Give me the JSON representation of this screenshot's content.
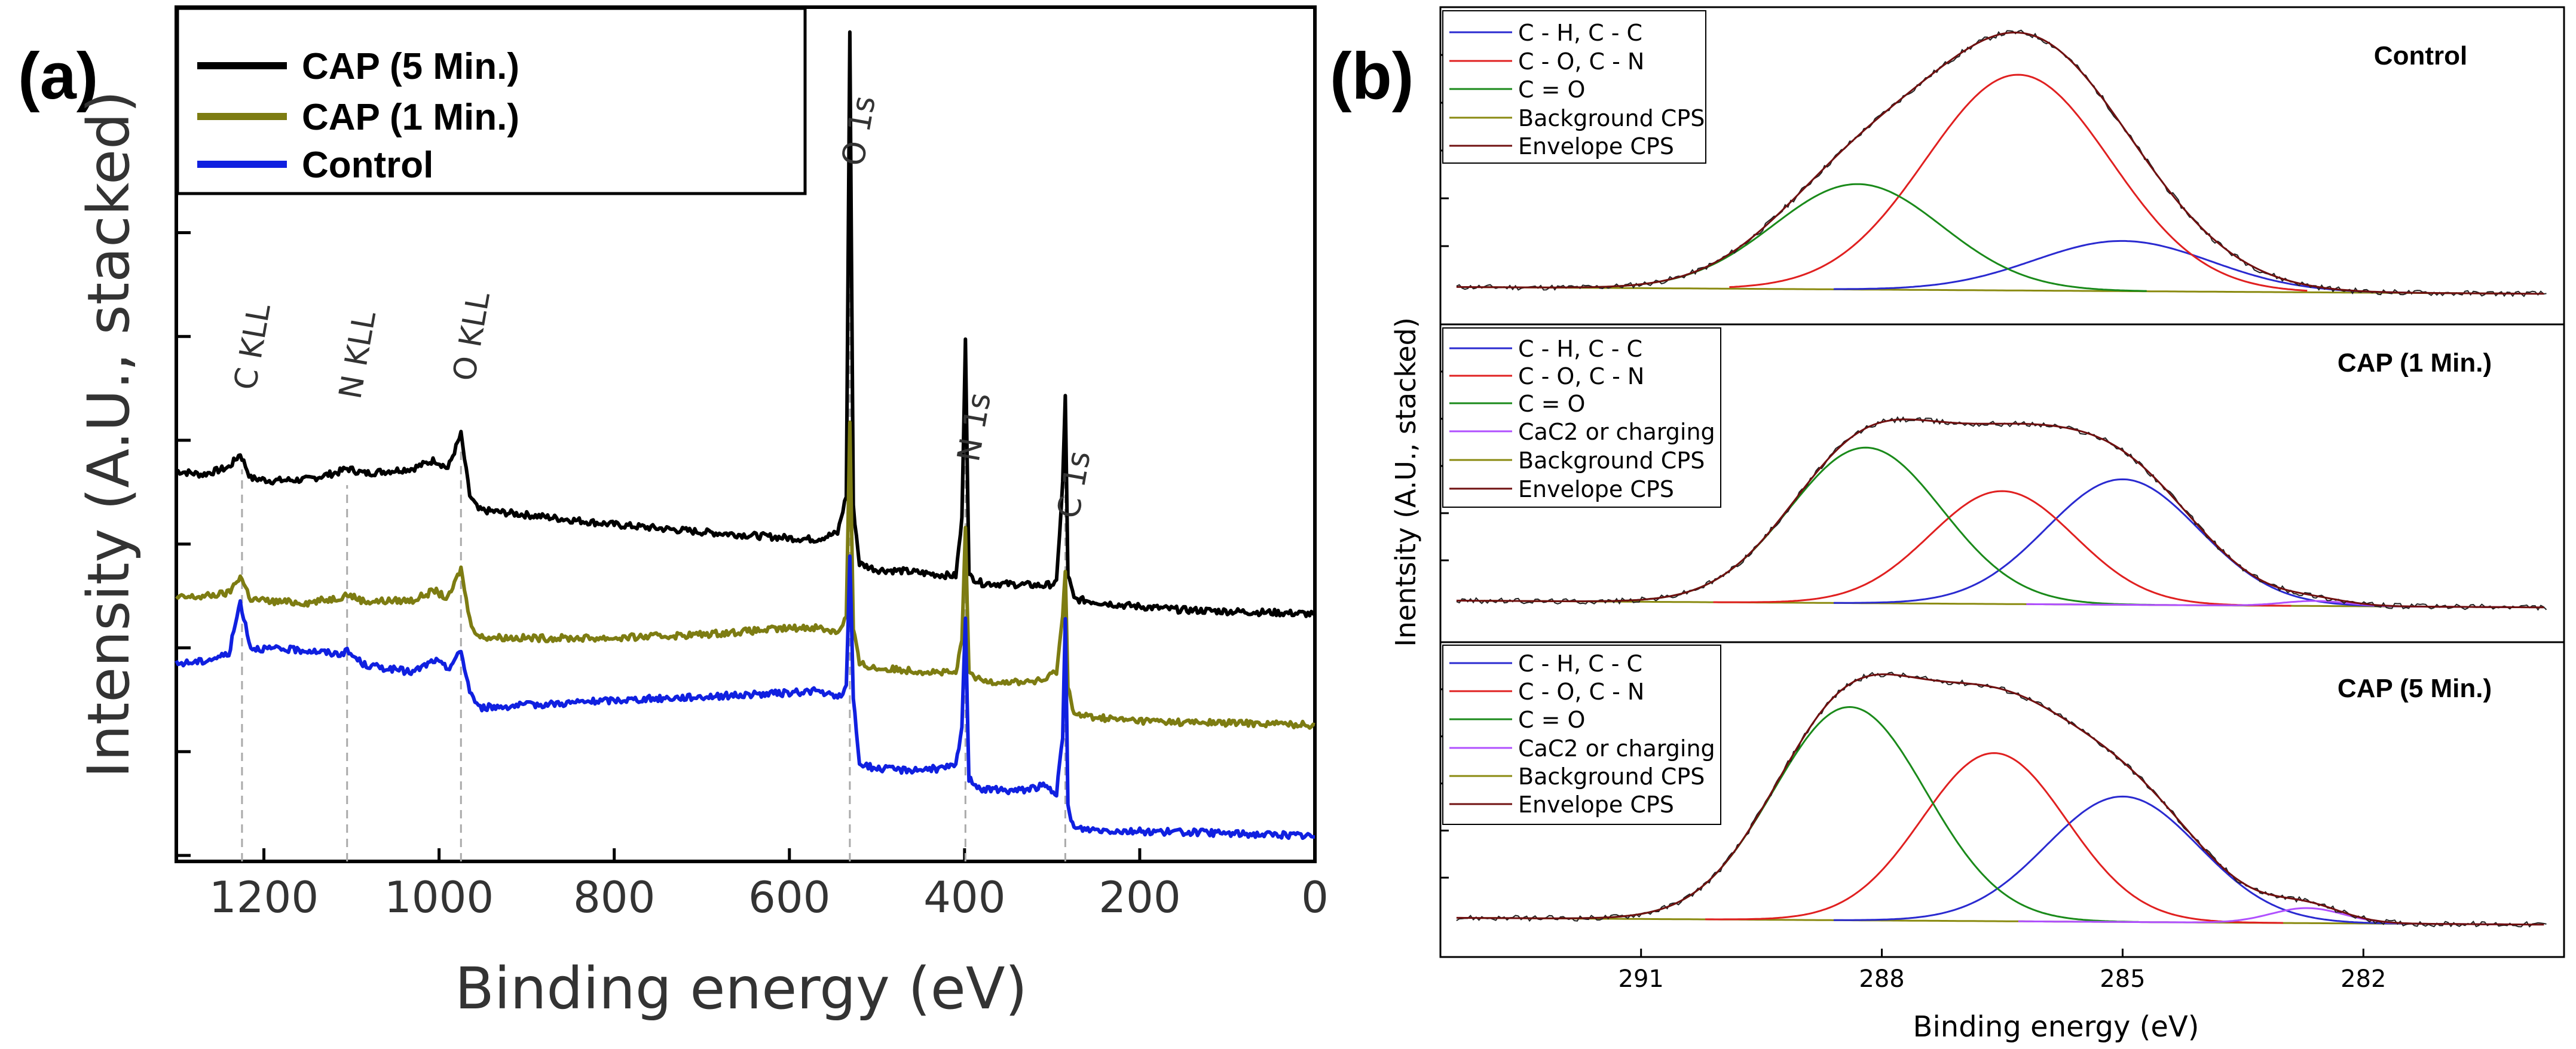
{
  "panels": {
    "a_label": "(a)",
    "b_label": "(b)"
  },
  "colors": {
    "black": "#000000",
    "olive": "#7d7c12",
    "blue": "#1020e0",
    "fit_blue": "#2a2ad0",
    "fit_red": "#e02020",
    "fit_green": "#1a8a1a",
    "fit_violet": "#b050ff",
    "fit_bg": "#8a8a10",
    "fit_env": "#701010"
  },
  "chart_data": [
    {
      "type": "line",
      "title": "",
      "xlabel": "Binding energy (eV)",
      "ylabel": "Intensity (A.U., stacked)",
      "xlim": [
        1300,
        0
      ],
      "xticks": [
        1200,
        1000,
        800,
        600,
        400,
        200,
        0
      ],
      "xtick_labels": [
        "1200",
        "1000",
        "800",
        "600",
        "400",
        "200",
        "0"
      ],
      "yticks_unlabeled": 9,
      "legend": {
        "position": "top-left",
        "entries": [
          "CAP (5 Min.)",
          "CAP (1 Min.)",
          "Control"
        ]
      },
      "annotations": [
        {
          "text": "C KLL",
          "x": 1225
        },
        {
          "text": "N KLL",
          "x": 1105
        },
        {
          "text": "O KLL",
          "x": 975
        },
        {
          "text": "O 1s",
          "x": 531
        },
        {
          "text": "N 1s",
          "x": 399
        },
        {
          "text": "C 1s",
          "x": 285
        }
      ],
      "series": [
        {
          "name": "CAP (5 Min.)",
          "color": "black",
          "points": [
            [
              1300,
              26.0
            ],
            [
              1270,
              25.7
            ],
            [
              1240,
              26.3
            ],
            [
              1227,
              27.4
            ],
            [
              1215,
              25.4
            ],
            [
              1190,
              25.2
            ],
            [
              1150,
              25.3
            ],
            [
              1115,
              25.9
            ],
            [
              1105,
              26.2
            ],
            [
              1085,
              25.8
            ],
            [
              1030,
              26.2
            ],
            [
              1005,
              26.9
            ],
            [
              990,
              26.2
            ],
            [
              975,
              29.0
            ],
            [
              965,
              24.0
            ],
            [
              955,
              22.8
            ],
            [
              900,
              22.4
            ],
            [
              800,
              21.6
            ],
            [
              700,
              21.0
            ],
            [
              600,
              20.5
            ],
            [
              570,
              20.4
            ],
            [
              545,
              20.9
            ],
            [
              535,
              24.0
            ],
            [
              531,
              62.0
            ],
            [
              527,
              23.0
            ],
            [
              520,
              18.4
            ],
            [
              500,
              17.9
            ],
            [
              470,
              17.8
            ],
            [
              430,
              17.5
            ],
            [
              410,
              17.4
            ],
            [
              403,
              22.0
            ],
            [
              399,
              37.0
            ],
            [
              395,
              17.4
            ],
            [
              380,
              16.8
            ],
            [
              340,
              16.7
            ],
            [
              310,
              16.6
            ],
            [
              295,
              16.8
            ],
            [
              288,
              25.0
            ],
            [
              285,
              32.0
            ],
            [
              282,
              17.5
            ],
            [
              275,
              15.5
            ],
            [
              220,
              15.0
            ],
            [
              150,
              14.6
            ],
            [
              50,
              14.4
            ],
            [
              10,
              14.3
            ],
            [
              0,
              14.2
            ]
          ]
        },
        {
          "name": "CAP (1 Min.)",
          "color": "olive",
          "points": [
            [
              1300,
              15.6
            ],
            [
              1270,
              15.7
            ],
            [
              1240,
              16.0
            ],
            [
              1227,
              17.4
            ],
            [
              1215,
              15.5
            ],
            [
              1190,
              15.3
            ],
            [
              1150,
              15.2
            ],
            [
              1115,
              15.6
            ],
            [
              1105,
              15.9
            ],
            [
              1085,
              15.3
            ],
            [
              1030,
              15.4
            ],
            [
              1005,
              16.2
            ],
            [
              990,
              15.5
            ],
            [
              975,
              18.0
            ],
            [
              965,
              13.8
            ],
            [
              955,
              12.4
            ],
            [
              900,
              12.3
            ],
            [
              800,
              12.3
            ],
            [
              700,
              12.6
            ],
            [
              600,
              13.1
            ],
            [
              570,
              13.2
            ],
            [
              545,
              12.8
            ],
            [
              535,
              14.0
            ],
            [
              531,
              30.0
            ],
            [
              527,
              13.0
            ],
            [
              520,
              10.2
            ],
            [
              500,
              9.8
            ],
            [
              470,
              9.7
            ],
            [
              430,
              9.5
            ],
            [
              410,
              9.4
            ],
            [
              403,
              12.0
            ],
            [
              399,
              21.5
            ],
            [
              395,
              9.3
            ],
            [
              380,
              8.8
            ],
            [
              340,
              8.7
            ],
            [
              310,
              8.8
            ],
            [
              295,
              9.6
            ],
            [
              288,
              14.0
            ],
            [
              285,
              18.0
            ],
            [
              282,
              8.5
            ],
            [
              275,
              6.0
            ],
            [
              220,
              5.6
            ],
            [
              150,
              5.4
            ],
            [
              50,
              5.3
            ],
            [
              10,
              5.2
            ],
            [
              0,
              5.2
            ]
          ]
        },
        {
          "name": "Control",
          "color": "blue",
          "points": [
            [
              1300,
              10.2
            ],
            [
              1270,
              10.4
            ],
            [
              1240,
              11.0
            ],
            [
              1227,
              15.3
            ],
            [
              1215,
              11.5
            ],
            [
              1190,
              11.4
            ],
            [
              1150,
              11.3
            ],
            [
              1115,
              11.0
            ],
            [
              1105,
              11.2
            ],
            [
              1085,
              10.1
            ],
            [
              1030,
              9.5
            ],
            [
              1005,
              10.5
            ],
            [
              990,
              9.8
            ],
            [
              975,
              11.2
            ],
            [
              965,
              8.0
            ],
            [
              955,
              6.6
            ],
            [
              900,
              6.8
            ],
            [
              800,
              7.2
            ],
            [
              700,
              7.5
            ],
            [
              600,
              7.8
            ],
            [
              570,
              8.0
            ],
            [
              545,
              7.4
            ],
            [
              535,
              8.2
            ],
            [
              531,
              19.0
            ],
            [
              527,
              7.5
            ],
            [
              520,
              2.0
            ],
            [
              500,
              1.6
            ],
            [
              470,
              1.5
            ],
            [
              430,
              1.6
            ],
            [
              410,
              1.8
            ],
            [
              403,
              5.0
            ],
            [
              399,
              14.0
            ],
            [
              395,
              0.8
            ],
            [
              380,
              -0.1
            ],
            [
              340,
              -0.2
            ],
            [
              310,
              0.2
            ],
            [
              295,
              -0.4
            ],
            [
              288,
              4.0
            ],
            [
              285,
              14.0
            ],
            [
              282,
              -1.5
            ],
            [
              275,
              -3.3
            ],
            [
              220,
              -3.5
            ],
            [
              150,
              -3.6
            ],
            [
              50,
              -3.8
            ],
            [
              10,
              -3.9
            ],
            [
              0,
              -4.0
            ]
          ]
        }
      ]
    },
    {
      "type": "line",
      "title": "",
      "xlabel": "Binding energy (eV)",
      "ylabel": "Inentsity (A.U., stacked)",
      "xlim": [
        293.5,
        279.5
      ],
      "xticks": [
        291,
        288,
        285,
        282
      ],
      "xtick_labels": [
        "291",
        "288",
        "285",
        "282"
      ],
      "subplots": [
        {
          "name": "Control",
          "legend": [
            "C - H,  C - C",
            "C - O, C - N",
            "C = O",
            "Background CPS",
            "Envelope CPS"
          ],
          "components": [
            {
              "name": "C - H,  C - C",
              "color": "fit_blue",
              "center": 285.0,
              "height": 0.2,
              "width": 1.1
            },
            {
              "name": "C - O, C - N",
              "color": "fit_red",
              "center": 286.3,
              "height": 0.86,
              "width": 1.15
            },
            {
              "name": "C = O",
              "color": "fit_green",
              "center": 288.3,
              "height": 0.42,
              "width": 1.05
            }
          ],
          "envelope_max": 1.0
        },
        {
          "name": "CAP (1 Min.)",
          "legend": [
            "C - H,  C - C",
            "C - O, C - N",
            "C = O",
            "CaC2    or charging",
            "Background CPS",
            "Envelope CPS"
          ],
          "components": [
            {
              "name": "C - H,  C - C",
              "color": "fit_blue",
              "center": 285.0,
              "height": 0.5,
              "width": 0.95
            },
            {
              "name": "C - O, C - N",
              "color": "fit_red",
              "center": 286.5,
              "height": 0.45,
              "width": 0.9
            },
            {
              "name": "C = O",
              "color": "fit_green",
              "center": 288.2,
              "height": 0.62,
              "width": 0.95
            },
            {
              "name": "CaC2    or charging",
              "color": "fit_violet",
              "center": 282.6,
              "height": 0.02,
              "width": 0.4
            }
          ],
          "envelope_max": 0.66
        },
        {
          "name": "CAP (5 Min.)",
          "legend": [
            "C - H,  C - C",
            "C - O, C - N",
            "C = O",
            "CaC2    or charging",
            "Background CPS",
            "Envelope CPS"
          ],
          "components": [
            {
              "name": "C - H,  C - C",
              "color": "fit_blue",
              "center": 285.0,
              "height": 0.5,
              "width": 0.95
            },
            {
              "name": "C - O, C - N",
              "color": "fit_red",
              "center": 286.6,
              "height": 0.67,
              "width": 0.9
            },
            {
              "name": "C = O",
              "color": "fit_green",
              "center": 288.4,
              "height": 0.85,
              "width": 0.95
            },
            {
              "name": "CaC2    or charging",
              "color": "fit_violet",
              "center": 282.7,
              "height": 0.06,
              "width": 0.45
            }
          ],
          "envelope_max": 0.9
        }
      ]
    }
  ]
}
